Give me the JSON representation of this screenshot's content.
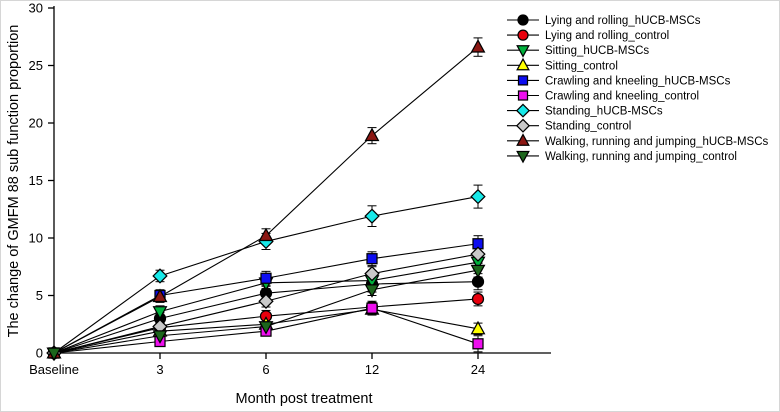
{
  "figure": {
    "xlabel": "Month post treatment",
    "ylabel": "The change of GMFM 88 sub function proportion"
  },
  "chart_data": {
    "type": "line",
    "title": "",
    "xlabel": "Month post treatment",
    "ylabel": "The change of GMFM 88 sub function proportion",
    "categories": [
      "Baseline",
      "3",
      "6",
      "12",
      "24"
    ],
    "ylim": [
      0,
      30
    ],
    "yticks": [
      0,
      5,
      10,
      15,
      20,
      25,
      30
    ],
    "grid": false,
    "legend_position": "right-top-outside",
    "line_color": "#000000",
    "error_bars": true,
    "series": [
      {
        "name": "Lying and rolling_hUCB-MSCs",
        "marker": "circle",
        "color": "#000000",
        "values": [
          0,
          3.0,
          5.2,
          6.0,
          6.2
        ],
        "errors": [
          0,
          0.5,
          0.6,
          0.7,
          0.7
        ]
      },
      {
        "name": "Lying and rolling_control",
        "marker": "circle",
        "color": "#e8000d",
        "values": [
          0,
          2.2,
          3.2,
          4.0,
          4.7
        ],
        "errors": [
          0,
          0.4,
          0.5,
          0.5,
          0.6
        ]
      },
      {
        "name": "Sitting_hUCB-MSCs",
        "marker": "triangle-down",
        "color": "#00b03c",
        "values": [
          0,
          3.6,
          6.1,
          6.3,
          7.9
        ],
        "errors": [
          0,
          0.5,
          0.5,
          0.6,
          0.6
        ]
      },
      {
        "name": "Sitting_control",
        "marker": "triangle-up",
        "color": "#ffff00",
        "values": [
          0,
          1.9,
          2.5,
          3.8,
          2.1
        ],
        "errors": [
          0,
          0.4,
          0.4,
          0.5,
          0.5
        ]
      },
      {
        "name": "Crawling and kneeling_hUCB-MSCs",
        "marker": "square",
        "color": "#0d0df0",
        "values": [
          0,
          5.0,
          6.5,
          8.2,
          9.5
        ],
        "errors": [
          0,
          0.5,
          0.6,
          0.6,
          0.7
        ]
      },
      {
        "name": "Crawling and kneeling_control",
        "marker": "square",
        "color": "#ef0fef",
        "values": [
          0,
          1.0,
          1.9,
          3.9,
          0.8
        ],
        "errors": [
          0,
          0.4,
          0.4,
          0.5,
          0.7
        ]
      },
      {
        "name": "Standing_hUCB-MSCs",
        "marker": "diamond",
        "color": "#17e9e9",
        "values": [
          0,
          6.7,
          9.7,
          11.9,
          13.6
        ],
        "errors": [
          0,
          0.5,
          0.7,
          0.9,
          1.0
        ]
      },
      {
        "name": "Standing_control",
        "marker": "diamond",
        "color": "#c9c9c9",
        "values": [
          0,
          2.3,
          4.5,
          6.9,
          8.6
        ],
        "errors": [
          0,
          0.4,
          0.5,
          0.6,
          0.7
        ]
      },
      {
        "name": "Walking, running and jumping_hUCB-MSCs",
        "marker": "triangle-up",
        "color": "#8c1713",
        "values": [
          0,
          4.9,
          10.2,
          18.9,
          26.6
        ],
        "errors": [
          0,
          0.5,
          0.6,
          0.7,
          0.8
        ]
      },
      {
        "name": "Walking, running and jumping_control",
        "marker": "triangle-down",
        "color": "#1c661c",
        "values": [
          0,
          1.5,
          2.3,
          5.5,
          7.2
        ],
        "errors": [
          0,
          0.4,
          0.4,
          0.5,
          0.6
        ]
      }
    ]
  }
}
